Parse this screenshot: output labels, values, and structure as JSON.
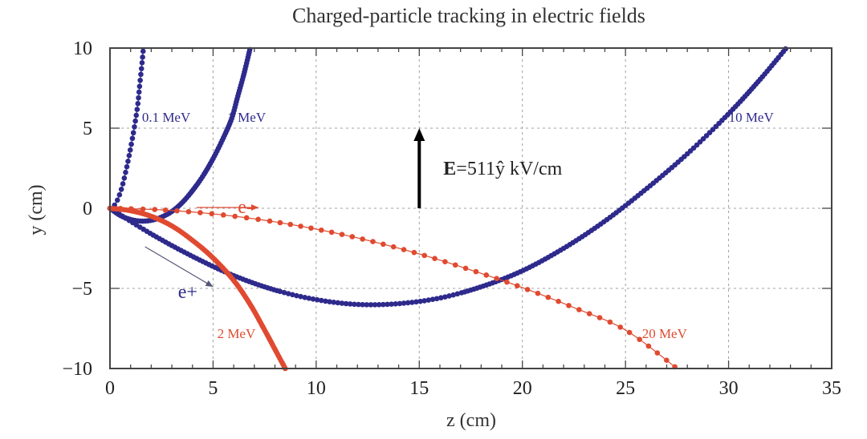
{
  "chart_data": {
    "type": "scatter",
    "title": "Charged-particle tracking in electric fields",
    "xlabel": "z (cm)",
    "ylabel": "y (cm)",
    "xlim": [
      0,
      35
    ],
    "ylim": [
      -10,
      10
    ],
    "xticks": [
      0,
      5,
      10,
      15,
      20,
      25,
      30,
      35
    ],
    "yticks": [
      -10,
      -5,
      0,
      5,
      10
    ],
    "xtick_labels": [
      "0",
      "5",
      "10",
      "15",
      "20",
      "25",
      "30",
      "35"
    ],
    "ytick_labels": [
      "−10",
      "−5",
      "0",
      "5",
      "10"
    ],
    "x_minor_step": 1,
    "grid": true,
    "colors": {
      "positron": "#2e2a8c",
      "electron": "#e04a30",
      "arrow": "#000000",
      "grid": "#a0a0a0"
    },
    "field_annotation": {
      "bold_part": "E",
      "rest": "=511ŷ kV/cm",
      "arrow_from": [
        15,
        0
      ],
      "arrow_to": [
        15,
        5
      ]
    },
    "series": [
      {
        "name": "0.1 MeV",
        "particle": "e+",
        "color": "#2e2a8c",
        "label_at": [
          1.55,
          5.4
        ],
        "points": [
          [
            0,
            0
          ],
          [
            0.15,
            0.1
          ],
          [
            0.3,
            0.35
          ],
          [
            0.45,
            0.8
          ],
          [
            0.6,
            1.4
          ],
          [
            0.75,
            2.2
          ],
          [
            0.9,
            3.1
          ],
          [
            1.05,
            4.1
          ],
          [
            1.2,
            5.2
          ],
          [
            1.35,
            6.5
          ],
          [
            1.45,
            7.8
          ],
          [
            1.55,
            9.0
          ],
          [
            1.62,
            10
          ]
        ]
      },
      {
        "name": "1 MeV",
        "particle": "e+",
        "color": "#2e2a8c",
        "label_at": [
          5.7,
          5.4
        ],
        "points": [
          [
            0,
            0
          ],
          [
            0.5,
            -0.45
          ],
          [
            1.0,
            -0.7
          ],
          [
            1.5,
            -0.8
          ],
          [
            2.0,
            -0.75
          ],
          [
            2.5,
            -0.55
          ],
          [
            3.0,
            -0.2
          ],
          [
            3.5,
            0.35
          ],
          [
            4.0,
            1.1
          ],
          [
            4.5,
            2.0
          ],
          [
            5.0,
            3.1
          ],
          [
            5.5,
            4.4
          ],
          [
            5.9,
            5.6
          ],
          [
            6.2,
            7.0
          ],
          [
            6.5,
            8.4
          ],
          [
            6.8,
            10
          ]
        ]
      },
      {
        "name": "10 MeV",
        "particle": "e+",
        "color": "#2e2a8c",
        "label_at": [
          30.0,
          5.4
        ],
        "points": [
          [
            0,
            0
          ],
          [
            2,
            -1.6
          ],
          [
            4,
            -3.0
          ],
          [
            6,
            -4.2
          ],
          [
            8,
            -5.1
          ],
          [
            10,
            -5.7
          ],
          [
            12,
            -6.0
          ],
          [
            14,
            -5.95
          ],
          [
            16,
            -5.6
          ],
          [
            18,
            -4.9
          ],
          [
            20,
            -3.9
          ],
          [
            22,
            -2.5
          ],
          [
            24,
            -0.8
          ],
          [
            26,
            1.2
          ],
          [
            28,
            3.4
          ],
          [
            30,
            5.9
          ],
          [
            31.5,
            8.0
          ],
          [
            32.8,
            10
          ]
        ]
      },
      {
        "name": "2 MeV",
        "particle": "e-",
        "color": "#e04a30",
        "label_at": [
          5.2,
          -8.1
        ],
        "points": [
          [
            0,
            0
          ],
          [
            1,
            -0.15
          ],
          [
            2,
            -0.5
          ],
          [
            3,
            -1.1
          ],
          [
            4,
            -2.0
          ],
          [
            5,
            -3.1
          ],
          [
            6,
            -4.5
          ],
          [
            6.8,
            -6.0
          ],
          [
            7.5,
            -7.6
          ],
          [
            8.0,
            -8.8
          ],
          [
            8.5,
            -10
          ]
        ]
      },
      {
        "name": "20 MeV",
        "particle": "e-",
        "color": "#e04a30",
        "label_at": [
          25.8,
          -8.1
        ],
        "points": [
          [
            0,
            0
          ],
          [
            2.5,
            -0.1
          ],
          [
            5,
            -0.35
          ],
          [
            7.5,
            -0.75
          ],
          [
            10,
            -1.3
          ],
          [
            12.5,
            -2.0
          ],
          [
            15,
            -2.85
          ],
          [
            17.5,
            -3.85
          ],
          [
            20,
            -4.95
          ],
          [
            22.5,
            -6.2
          ],
          [
            25,
            -7.6
          ],
          [
            27.5,
            -10
          ]
        ]
      }
    ],
    "annotations": [
      {
        "text": "e-",
        "color": "#e04a30",
        "label_at": [
          6.2,
          0.1
        ],
        "arrow_from": [
          4.2,
          0.05
        ],
        "arrow_to": [
          7.2,
          0.05
        ]
      },
      {
        "text": "e+",
        "color": "#2e2a8c",
        "label_at": [
          3.3,
          -5.2
        ],
        "arrow_from": [
          1.7,
          -2.4
        ],
        "arrow_to": [
          5.0,
          -4.9
        ]
      }
    ]
  }
}
